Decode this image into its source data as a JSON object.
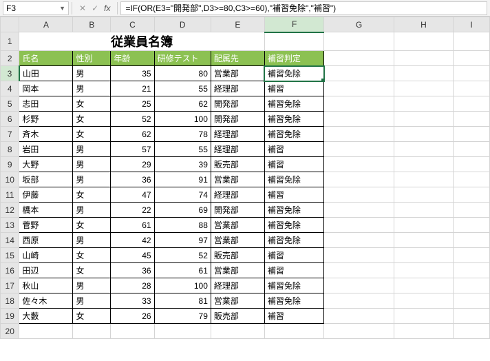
{
  "nameBox": "F3",
  "formula": "=IF(OR(E3=\"開発部\",D3>=80,C3>=60),\"補習免除\",\"補習\")",
  "columns": [
    "A",
    "B",
    "C",
    "D",
    "E",
    "F",
    "G",
    "H",
    "I"
  ],
  "activeCol": "F",
  "activeRow": 3,
  "titleRow": {
    "row": 1,
    "text": "従業員名簿"
  },
  "headerRow": {
    "row": 2,
    "cells": [
      "氏名",
      "性別",
      "年齢",
      "研修テスト",
      "配属先",
      "補習判定"
    ]
  },
  "dataRows": [
    {
      "row": 3,
      "n": "山田",
      "s": "男",
      "a": 35,
      "t": 80,
      "d": "営業部",
      "j": "補習免除"
    },
    {
      "row": 4,
      "n": "岡本",
      "s": "男",
      "a": 21,
      "t": 55,
      "d": "経理部",
      "j": "補習"
    },
    {
      "row": 5,
      "n": "志田",
      "s": "女",
      "a": 25,
      "t": 62,
      "d": "開発部",
      "j": "補習免除"
    },
    {
      "row": 6,
      "n": "杉野",
      "s": "女",
      "a": 52,
      "t": 100,
      "d": "開発部",
      "j": "補習免除"
    },
    {
      "row": 7,
      "n": "斉木",
      "s": "女",
      "a": 62,
      "t": 78,
      "d": "経理部",
      "j": "補習免除"
    },
    {
      "row": 8,
      "n": "岩田",
      "s": "男",
      "a": 57,
      "t": 55,
      "d": "経理部",
      "j": "補習"
    },
    {
      "row": 9,
      "n": "大野",
      "s": "男",
      "a": 29,
      "t": 39,
      "d": "販売部",
      "j": "補習"
    },
    {
      "row": 10,
      "n": "坂部",
      "s": "男",
      "a": 36,
      "t": 91,
      "d": "営業部",
      "j": "補習免除"
    },
    {
      "row": 11,
      "n": "伊藤",
      "s": "女",
      "a": 47,
      "t": 74,
      "d": "経理部",
      "j": "補習"
    },
    {
      "row": 12,
      "n": "橋本",
      "s": "男",
      "a": 22,
      "t": 69,
      "d": "開発部",
      "j": "補習免除"
    },
    {
      "row": 13,
      "n": "菅野",
      "s": "女",
      "a": 61,
      "t": 88,
      "d": "営業部",
      "j": "補習免除"
    },
    {
      "row": 14,
      "n": "西原",
      "s": "男",
      "a": 42,
      "t": 97,
      "d": "営業部",
      "j": "補習免除"
    },
    {
      "row": 15,
      "n": "山崎",
      "s": "女",
      "a": 45,
      "t": 52,
      "d": "販売部",
      "j": "補習"
    },
    {
      "row": 16,
      "n": "田辺",
      "s": "女",
      "a": 36,
      "t": 61,
      "d": "営業部",
      "j": "補習"
    },
    {
      "row": 17,
      "n": "秋山",
      "s": "男",
      "a": 28,
      "t": 100,
      "d": "経理部",
      "j": "補習免除"
    },
    {
      "row": 18,
      "n": "佐々木",
      "s": "男",
      "a": 33,
      "t": 81,
      "d": "営業部",
      "j": "補習免除"
    },
    {
      "row": 19,
      "n": "大藪",
      "s": "女",
      "a": 26,
      "t": 79,
      "d": "販売部",
      "j": "補習"
    }
  ],
  "emptyRows": [
    20
  ],
  "icons": {
    "cancel": "✕",
    "confirm": "✓",
    "fx": "fx",
    "dropdown": "▼"
  }
}
